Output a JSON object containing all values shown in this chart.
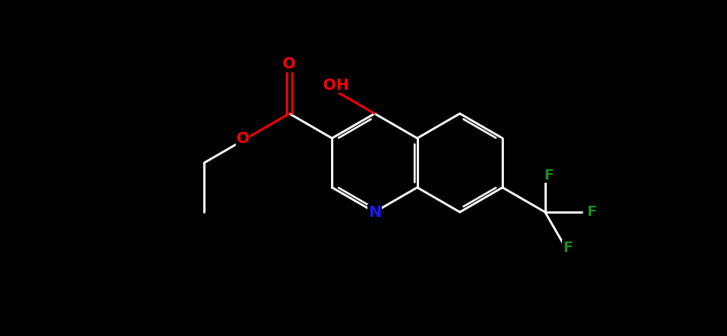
{
  "bg": "#000000",
  "white": "#ffffff",
  "red": "#ff0000",
  "blue": "#1a1aff",
  "green": "#228b22",
  "figsize": [
    9.16,
    4.23
  ],
  "dpi": 100,
  "BL": 0.62
}
